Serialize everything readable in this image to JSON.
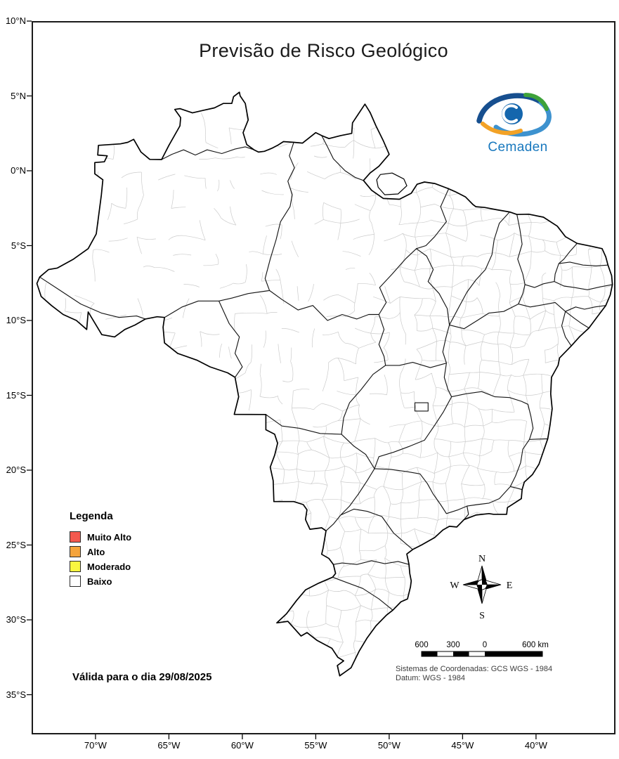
{
  "title": "Previsão de Risco Geológico",
  "logo": {
    "wordmark": "Cemaden"
  },
  "legend": {
    "heading": "Legenda",
    "items": [
      {
        "label": "Muito Alto",
        "color": "#F3594F"
      },
      {
        "label": "Alto",
        "color": "#F5A43C"
      },
      {
        "label": "Moderado",
        "color": "#F9F640"
      },
      {
        "label": "Baixo",
        "color": "#FFFFFF"
      }
    ]
  },
  "validity_note": "Válida para o dia 29/08/2025",
  "axes": {
    "latitude_labels": [
      "10°N",
      "5°N",
      "0°N",
      "5°S",
      "10°S",
      "15°S",
      "20°S",
      "25°S",
      "30°S",
      "35°S"
    ],
    "longitude_labels": [
      "70°W",
      "65°W",
      "60°W",
      "55°W",
      "50°W",
      "45°W",
      "40°W"
    ]
  },
  "compass": {
    "north": "N",
    "south": "S",
    "east": "E",
    "west": "W"
  },
  "scale_bar": {
    "labels": [
      "600",
      "300",
      "0",
      "600 km"
    ]
  },
  "crs": {
    "line1": "Sistemas de Coordenadas: GCS WGS - 1984",
    "line2": "Datum: WGS - 1984"
  }
}
